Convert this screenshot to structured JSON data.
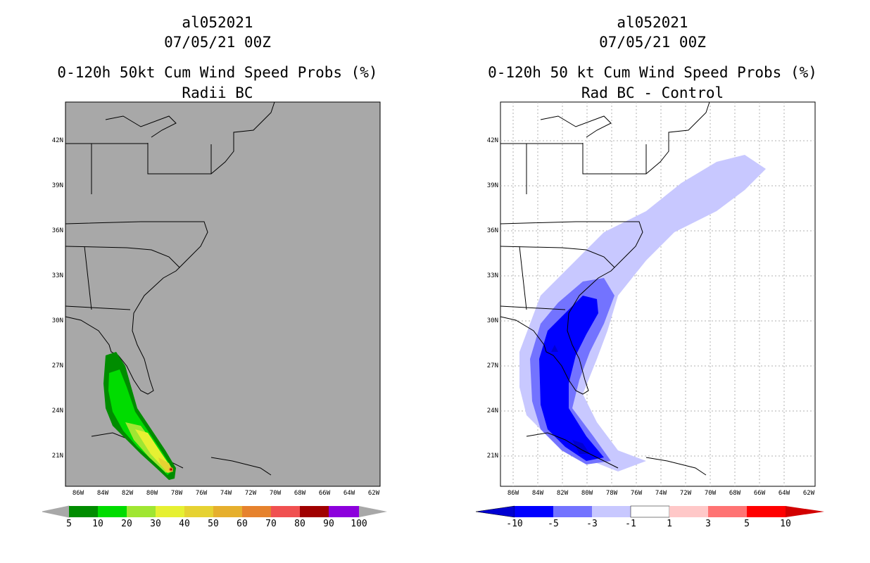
{
  "left": {
    "storm_id": "al052021",
    "datetime": "07/05/21 00Z",
    "title": "0-120h 50kt Cum Wind Speed Probs (%)",
    "subtitle": "Radii BC",
    "background_color": "#a8a8a8",
    "colorbar": {
      "labels": [
        "5",
        "10",
        "20",
        "30",
        "40",
        "50",
        "60",
        "70",
        "80",
        "90",
        "100"
      ],
      "colors": [
        "#008c00",
        "#00dc00",
        "#a0e632",
        "#e6f032",
        "#e6d232",
        "#e6af2d",
        "#e6822d",
        "#f05050",
        "#a00000",
        "#8c00dc"
      ]
    }
  },
  "right": {
    "storm_id": "al052021",
    "datetime": "07/05/21 00Z",
    "title": "0-120h 50 kt Cum Wind Speed Probs (%)",
    "subtitle": "Rad BC - Control",
    "background_color": "#ffffff",
    "colorbar": {
      "labels": [
        "-10",
        "-5",
        "-3",
        "-1",
        "1",
        "3",
        "5",
        "10"
      ],
      "colors": [
        "#0000d2",
        "#0000ff",
        "#7373ff",
        "#c8c8ff",
        "#ffffff",
        "#ffc8c8",
        "#ff7373",
        "#ff0000",
        "#d20000"
      ]
    }
  },
  "axes": {
    "lat_labels": [
      "42N",
      "39N",
      "36N",
      "33N",
      "30N",
      "27N",
      "24N",
      "21N"
    ],
    "lon_labels": [
      "86W",
      "84W",
      "82W",
      "80W",
      "78W",
      "76W",
      "74W",
      "72W",
      "70W",
      "68W",
      "66W",
      "64W",
      "62W"
    ]
  }
}
